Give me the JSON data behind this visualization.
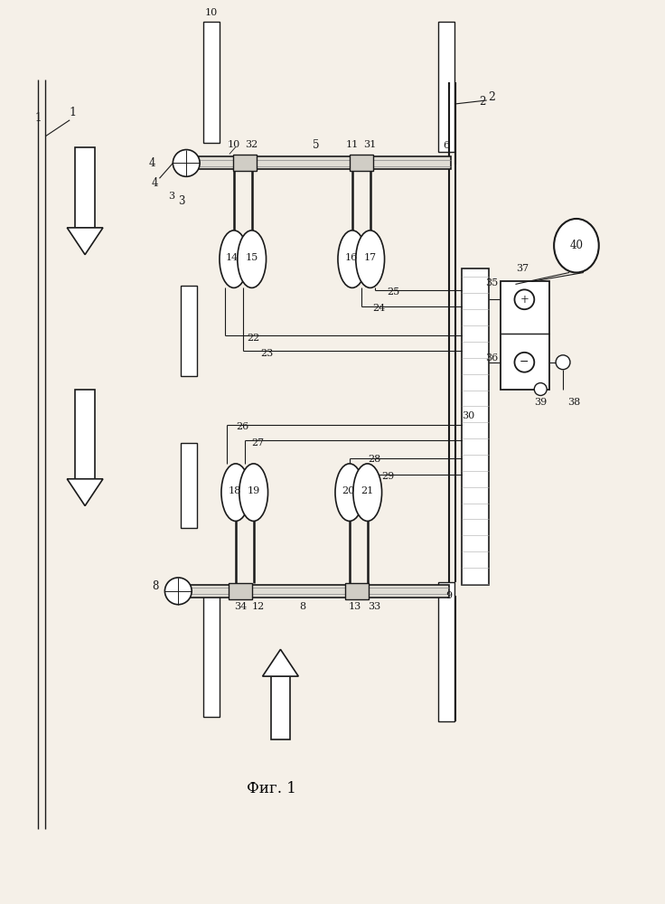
{
  "title": "Фиг. 1",
  "bg_color": "#f5f0e8",
  "line_color": "#1a1a1a",
  "fig_width": 7.36,
  "fig_height": 10.0,
  "lc": "#1a1a1a"
}
